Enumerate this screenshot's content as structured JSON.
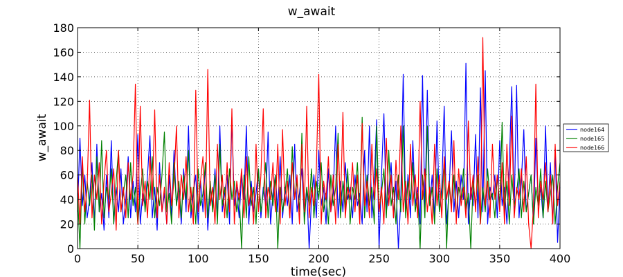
{
  "chart_data": {
    "type": "line",
    "title": "w_await",
    "xlabel": "time(sec)",
    "ylabel": "w_await",
    "xlim": [
      0,
      400
    ],
    "ylim": [
      0,
      180
    ],
    "xticks": [
      0,
      50,
      100,
      150,
      200,
      250,
      300,
      350,
      400
    ],
    "yticks": [
      0,
      20,
      40,
      60,
      80,
      100,
      120,
      140,
      160,
      180
    ],
    "grid": true,
    "grid_style": "dotted",
    "legend_position": "outside-right",
    "series": [
      {
        "name": "node164",
        "color": "#0000ff",
        "x": [
          0,
          2,
          4,
          6,
          8,
          10,
          12,
          14,
          16,
          18,
          20,
          22,
          24,
          26,
          28,
          30,
          32,
          34,
          36,
          38,
          40,
          42,
          44,
          46,
          48,
          50,
          52,
          54,
          56,
          58,
          60,
          62,
          64,
          66,
          68,
          70,
          72,
          74,
          76,
          78,
          80,
          82,
          84,
          86,
          88,
          90,
          92,
          94,
          96,
          98,
          100,
          102,
          104,
          106,
          108,
          110,
          112,
          114,
          116,
          118,
          120,
          122,
          124,
          126,
          128,
          130,
          132,
          134,
          136,
          138,
          140,
          142,
          144,
          146,
          148,
          150,
          152,
          154,
          156,
          158,
          160,
          162,
          164,
          166,
          168,
          170,
          172,
          174,
          176,
          178,
          180,
          182,
          184,
          186,
          188,
          190,
          192,
          194,
          196,
          198,
          200,
          202,
          204,
          206,
          208,
          210,
          212,
          214,
          216,
          218,
          220,
          222,
          224,
          226,
          228,
          230,
          232,
          234,
          236,
          238,
          240,
          242,
          244,
          246,
          248,
          250,
          252,
          254,
          256,
          258,
          260,
          262,
          264,
          266,
          268,
          270,
          272,
          274,
          276,
          278,
          280,
          282,
          284,
          286,
          288,
          290,
          292,
          294,
          296,
          298,
          300,
          302,
          304,
          306,
          308,
          310,
          312,
          314,
          316,
          318,
          320,
          322,
          324,
          326,
          328,
          330,
          332,
          334,
          336,
          338,
          340,
          342,
          344,
          346,
          348,
          350,
          352,
          354,
          356,
          358,
          360,
          362,
          364,
          366,
          368,
          370,
          372,
          374,
          376,
          378,
          380,
          382,
          384,
          386,
          388,
          390,
          392,
          394,
          396,
          398,
          400
        ],
        "y": [
          30,
          90,
          35,
          60,
          25,
          40,
          70,
          20,
          85,
          30,
          45,
          15,
          60,
          25,
          88,
          20,
          50,
          30,
          65,
          20,
          40,
          75,
          25,
          55,
          30,
          93,
          20,
          45,
          35,
          60,
          92,
          25,
          50,
          15,
          70,
          30,
          45,
          20,
          60,
          25,
          80,
          35,
          50,
          20,
          65,
          30,
          100,
          25,
          45,
          60,
          20,
          55,
          30,
          70,
          15,
          50,
          35,
          65,
          25,
          100,
          30,
          45,
          60,
          20,
          107,
          35,
          50,
          25,
          60,
          40,
          100,
          20,
          55,
          30,
          45,
          65,
          25,
          50,
          35,
          95,
          20,
          45,
          60,
          30,
          75,
          25,
          50,
          35,
          60,
          20,
          85,
          30,
          45,
          65,
          25,
          50,
          0,
          40,
          60,
          25,
          80,
          35,
          50,
          20,
          65,
          30,
          45,
          100,
          25,
          55,
          30,
          70,
          40,
          50,
          25,
          60,
          35,
          45,
          20,
          80,
          30,
          100,
          25,
          55,
          105,
          0,
          60,
          110,
          30,
          45,
          70,
          25,
          55,
          0,
          40,
          142,
          30,
          60,
          25,
          88,
          35,
          50,
          20,
          141,
          30,
          129,
          35,
          60,
          25,
          104,
          30,
          50,
          116,
          20,
          45,
          96,
          30,
          55,
          25,
          60,
          40,
          151,
          20,
          50,
          35,
          93,
          25,
          131,
          30,
          145,
          20,
          50,
          40,
          60,
          25,
          88,
          35,
          50,
          20,
          70,
          132,
          30,
          133,
          25,
          55,
          97,
          30,
          45,
          60,
          20,
          90,
          35,
          50,
          25,
          100,
          30,
          70,
          20,
          81,
          5,
          50
        ]
      },
      {
        "name": "node165",
        "color": "#008000",
        "x": [
          0,
          2,
          4,
          6,
          8,
          10,
          12,
          14,
          16,
          18,
          20,
          22,
          24,
          26,
          28,
          30,
          32,
          34,
          36,
          38,
          40,
          42,
          44,
          46,
          48,
          50,
          52,
          54,
          56,
          58,
          60,
          62,
          64,
          66,
          68,
          70,
          72,
          74,
          76,
          78,
          80,
          82,
          84,
          86,
          88,
          90,
          92,
          94,
          96,
          98,
          100,
          102,
          104,
          106,
          108,
          110,
          112,
          114,
          116,
          118,
          120,
          122,
          124,
          126,
          128,
          130,
          132,
          134,
          136,
          138,
          140,
          142,
          144,
          146,
          148,
          150,
          152,
          154,
          156,
          158,
          160,
          162,
          164,
          166,
          168,
          170,
          172,
          174,
          176,
          178,
          180,
          182,
          184,
          186,
          188,
          190,
          192,
          194,
          196,
          198,
          200,
          202,
          204,
          206,
          208,
          210,
          212,
          214,
          216,
          218,
          220,
          222,
          224,
          226,
          228,
          230,
          232,
          234,
          236,
          238,
          240,
          242,
          244,
          246,
          248,
          250,
          252,
          254,
          256,
          258,
          260,
          262,
          264,
          266,
          268,
          270,
          272,
          274,
          276,
          278,
          280,
          282,
          284,
          286,
          288,
          290,
          292,
          294,
          296,
          298,
          300,
          302,
          304,
          306,
          308,
          310,
          312,
          314,
          316,
          318,
          320,
          322,
          324,
          326,
          328,
          330,
          332,
          334,
          336,
          338,
          340,
          342,
          344,
          346,
          348,
          350,
          352,
          354,
          356,
          358,
          360,
          362,
          364,
          366,
          368,
          370,
          372,
          374,
          376,
          378,
          380,
          382,
          384,
          386,
          388,
          390,
          392,
          394,
          396,
          398,
          400
        ],
        "y": [
          45,
          0,
          70,
          20,
          55,
          35,
          60,
          15,
          75,
          30,
          88,
          25,
          50,
          40,
          65,
          20,
          55,
          80,
          30,
          45,
          60,
          25,
          70,
          35,
          50,
          20,
          45,
          65,
          30,
          55,
          40,
          75,
          25,
          50,
          35,
          60,
          95,
          30,
          45,
          20,
          70,
          35,
          55,
          25,
          60,
          40,
          80,
          30,
          50,
          20,
          65,
          35,
          45,
          70,
          25,
          55,
          30,
          60,
          20,
          85,
          35,
          50,
          25,
          65,
          40,
          55,
          30,
          45,
          0,
          60,
          25,
          75,
          35,
          50,
          20,
          65,
          30,
          45,
          70,
          25,
          55,
          35,
          60,
          0,
          50,
          30,
          45,
          65,
          25,
          83,
          40,
          55,
          30,
          94,
          20,
          50,
          35,
          65,
          25,
          55,
          40,
          70,
          30,
          45,
          20,
          60,
          35,
          50,
          94,
          25,
          55,
          30,
          65,
          20,
          50,
          40,
          70,
          30,
          107,
          25,
          60,
          35,
          50,
          20,
          100,
          30,
          45,
          65,
          25,
          80,
          35,
          50,
          20,
          60,
          30,
          100,
          25,
          55,
          40,
          70,
          30,
          45,
          0,
          60,
          25,
          100,
          35,
          50,
          20,
          65,
          30,
          45,
          70,
          0,
          55,
          35,
          60,
          25,
          50,
          40,
          65,
          30,
          45,
          0,
          55,
          35,
          60,
          20,
          50,
          30,
          65,
          40,
          45,
          25,
          60,
          35,
          103,
          30,
          55,
          20,
          60,
          35,
          45,
          65,
          25,
          55,
          30,
          45,
          60,
          20,
          50,
          35,
          65,
          25,
          55,
          30,
          45,
          60,
          20,
          50,
          70
        ]
      },
      {
        "name": "node166",
        "color": "#ff0000",
        "x": [
          0,
          2,
          4,
          6,
          8,
          10,
          12,
          14,
          16,
          18,
          20,
          22,
          24,
          26,
          28,
          30,
          32,
          34,
          36,
          38,
          40,
          42,
          44,
          46,
          48,
          50,
          52,
          54,
          56,
          58,
          60,
          62,
          64,
          66,
          68,
          70,
          72,
          74,
          76,
          78,
          80,
          82,
          84,
          86,
          88,
          90,
          92,
          94,
          96,
          98,
          100,
          102,
          104,
          106,
          108,
          110,
          112,
          114,
          116,
          118,
          120,
          122,
          124,
          126,
          128,
          130,
          132,
          134,
          136,
          138,
          140,
          142,
          144,
          146,
          148,
          150,
          152,
          154,
          156,
          158,
          160,
          162,
          164,
          166,
          168,
          170,
          172,
          174,
          176,
          178,
          180,
          182,
          184,
          186,
          188,
          190,
          192,
          194,
          196,
          198,
          200,
          202,
          204,
          206,
          208,
          210,
          212,
          214,
          216,
          218,
          220,
          222,
          224,
          226,
          228,
          230,
          232,
          234,
          236,
          238,
          240,
          242,
          244,
          246,
          248,
          250,
          252,
          254,
          256,
          258,
          260,
          262,
          264,
          266,
          268,
          270,
          272,
          274,
          276,
          278,
          280,
          282,
          284,
          286,
          288,
          290,
          292,
          294,
          296,
          298,
          300,
          302,
          304,
          306,
          308,
          310,
          312,
          314,
          316,
          318,
          320,
          322,
          324,
          326,
          328,
          330,
          332,
          334,
          336,
          338,
          340,
          342,
          344,
          346,
          348,
          350,
          352,
          354,
          356,
          358,
          360,
          362,
          364,
          366,
          368,
          370,
          372,
          374,
          376,
          378,
          380,
          382,
          384,
          386,
          388,
          390,
          392,
          394,
          396,
          398,
          400
        ],
        "y": [
          60,
          20,
          75,
          30,
          50,
          121,
          25,
          60,
          40,
          70,
          20,
          55,
          80,
          30,
          45,
          65,
          15,
          80,
          30,
          50,
          25,
          70,
          40,
          60,
          134,
          20,
          116,
          35,
          55,
          25,
          75,
          40,
          113,
          25,
          60,
          30,
          50,
          20,
          70,
          35,
          55,
          100,
          25,
          60,
          40,
          75,
          30,
          50,
          20,
          129,
          30,
          55,
          75,
          25,
          146,
          35,
          50,
          20,
          85,
          40,
          60,
          25,
          70,
          30,
          114,
          20,
          55,
          40,
          65,
          25,
          75,
          35,
          50,
          20,
          85,
          30,
          60,
          114,
          25,
          50,
          40,
          70,
          30,
          85,
          20,
          97,
          35,
          55,
          25,
          70,
          40,
          60,
          20,
          85,
          30,
          116,
          25,
          50,
          35,
          65,
          142,
          20,
          55,
          40,
          75,
          30,
          60,
          20,
          85,
          35,
          111,
          25,
          50,
          40,
          70,
          30,
          60,
          20,
          102,
          35,
          55,
          25,
          85,
          40,
          65,
          30,
          50,
          20,
          90,
          35,
          60,
          25,
          72,
          40,
          100,
          30,
          55,
          20,
          85,
          35,
          60,
          25,
          120,
          40,
          65,
          30,
          50,
          20,
          85,
          35,
          60,
          25,
          75,
          40,
          55,
          30,
          88,
          20,
          65,
          35,
          50,
          25,
          104,
          40,
          60,
          30,
          75,
          20,
          172,
          35,
          55,
          25,
          85,
          40,
          60,
          30,
          70,
          20,
          85,
          35,
          108,
          25,
          50,
          40,
          65,
          30,
          75,
          20,
          0,
          35,
          134,
          25,
          55,
          40,
          70,
          30,
          60,
          20,
          85,
          35,
          55
        ]
      }
    ]
  }
}
